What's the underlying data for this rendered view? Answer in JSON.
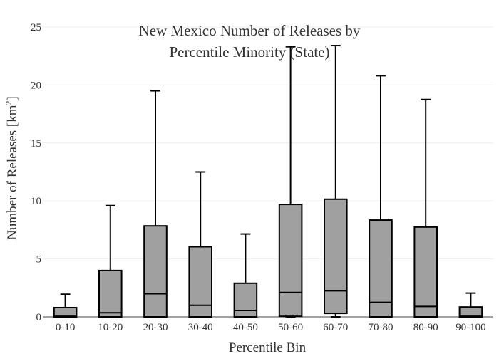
{
  "chart_data": {
    "type": "box",
    "title_lines": [
      "New Mexico Number of Releases by",
      "Percentile Minority (State)"
    ],
    "xlabel": "Percentile Bin",
    "ylabel": "Number of Releases  [km",
    "ylabel_sup": "2",
    "ylabel_close": "]",
    "ylim": [
      0,
      25
    ],
    "yticks": [
      "0",
      "5",
      "10",
      "15",
      "20",
      "25"
    ],
    "grid": true,
    "categories": [
      "0-10",
      "10-20",
      "20-30",
      "30-40",
      "40-50",
      "50-60",
      "60-70",
      "70-80",
      "80-90",
      "90-100"
    ],
    "boxes": [
      {
        "min": 0,
        "q1": 0,
        "median": 0.05,
        "q3": 0.8,
        "max": 1.95
      },
      {
        "min": 0,
        "q1": 0,
        "median": 0.35,
        "q3": 4.0,
        "max": 9.6
      },
      {
        "min": 0,
        "q1": 0,
        "median": 2.0,
        "q3": 7.85,
        "max": 19.5
      },
      {
        "min": 0,
        "q1": 0,
        "median": 1.0,
        "q3": 6.05,
        "max": 12.5
      },
      {
        "min": 0,
        "q1": 0,
        "median": 0.55,
        "q3": 2.9,
        "max": 7.15
      },
      {
        "min": 0,
        "q1": 0.05,
        "median": 2.1,
        "q3": 9.7,
        "max": 23.3
      },
      {
        "min": 0,
        "q1": 0.3,
        "median": 2.25,
        "q3": 10.15,
        "max": 23.4
      },
      {
        "min": 0,
        "q1": 0,
        "median": 1.25,
        "q3": 8.35,
        "max": 20.8
      },
      {
        "min": 0,
        "q1": 0,
        "median": 0.9,
        "q3": 7.75,
        "max": 18.75
      },
      {
        "min": 0,
        "q1": 0,
        "median": 0.05,
        "q3": 0.85,
        "max": 2.05
      }
    ],
    "colors": {
      "box_fill": "#a0a0a0",
      "box_stroke": "#000000",
      "grid": "#eeeeee",
      "text": "#333333"
    }
  }
}
